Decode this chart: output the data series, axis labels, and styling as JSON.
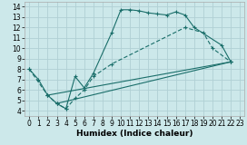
{
  "xlabel": "Humidex (Indice chaleur)",
  "bg_color": "#cce8ea",
  "grid_color": "#b0d0d4",
  "line_color": "#1a6e6a",
  "xlim": [
    -0.5,
    23.5
  ],
  "ylim": [
    3.5,
    14.5
  ],
  "xticks": [
    0,
    1,
    2,
    3,
    4,
    5,
    6,
    7,
    8,
    9,
    10,
    11,
    12,
    13,
    14,
    15,
    16,
    17,
    18,
    19,
    20,
    21,
    22,
    23
  ],
  "yticks": [
    4,
    5,
    6,
    7,
    8,
    9,
    10,
    11,
    12,
    13,
    14
  ],
  "line1_x": [
    0,
    1,
    2,
    3,
    4,
    5,
    6,
    7,
    9,
    10,
    11,
    12,
    13,
    14,
    15,
    16,
    17,
    18,
    21,
    22
  ],
  "line1_y": [
    8,
    7,
    5.5,
    4.7,
    4.2,
    7.3,
    6.2,
    7.6,
    11.5,
    13.7,
    13.7,
    13.6,
    13.4,
    13.3,
    13.2,
    13.5,
    13.2,
    12.0,
    10.3,
    8.7
  ],
  "line2_x": [
    0,
    2,
    3,
    4,
    5,
    6,
    7,
    9,
    17,
    19,
    20,
    22
  ],
  "line2_y": [
    8,
    5.5,
    4.7,
    4.2,
    5.2,
    6.0,
    7.3,
    8.5,
    12.0,
    11.5,
    10.0,
    8.7
  ],
  "line3_x": [
    2,
    22
  ],
  "line3_y": [
    5.5,
    8.7
  ],
  "line4_x": [
    3,
    22
  ],
  "line4_y": [
    4.7,
    8.7
  ]
}
